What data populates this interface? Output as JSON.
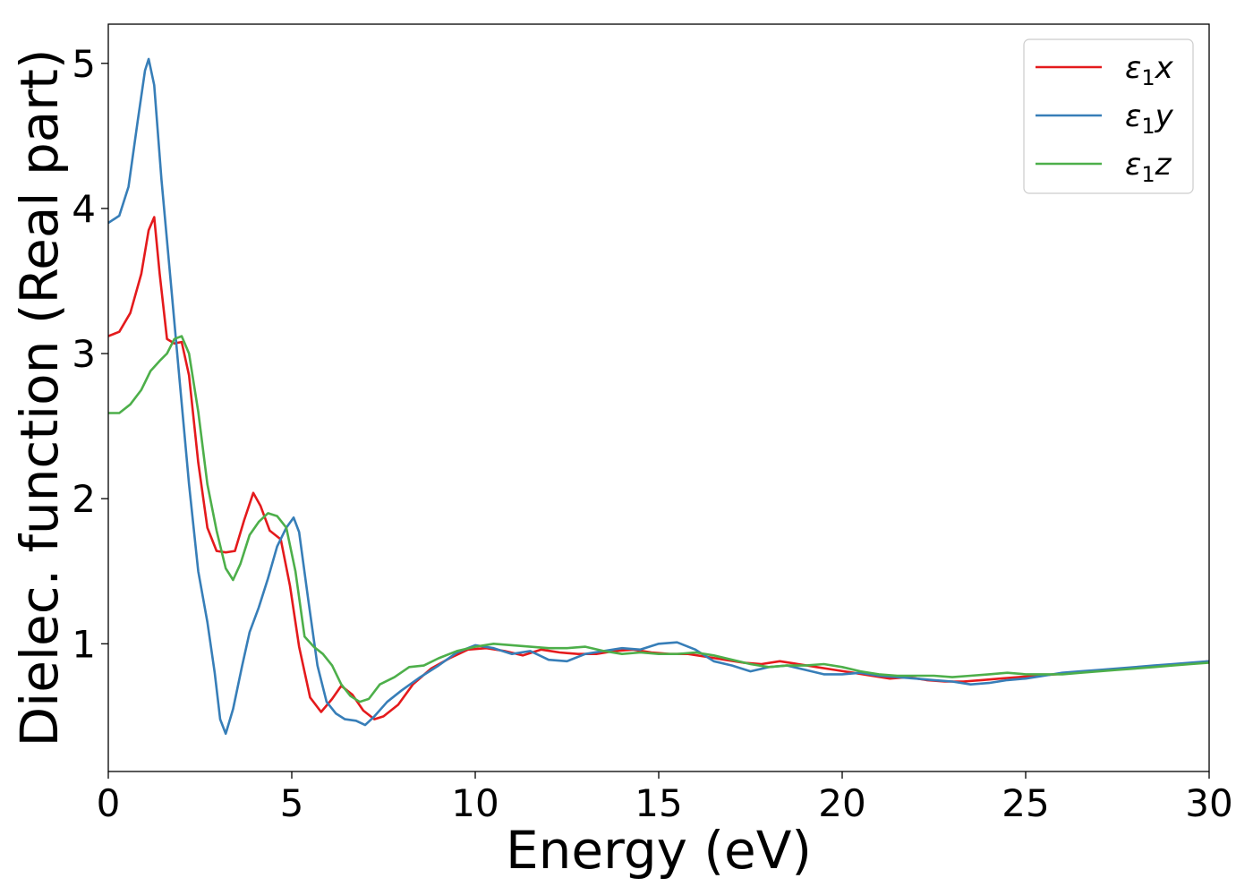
{
  "chart_data": {
    "type": "line",
    "title": "",
    "xlabel": "Energy (eV)",
    "ylabel": "Dielec. function (Real part)",
    "xlim": [
      0,
      30
    ],
    "ylim": [
      0.12,
      5.27
    ],
    "xticks": [
      0,
      5,
      10,
      15,
      20,
      25,
      30
    ],
    "yticks": [
      1,
      2,
      3,
      4,
      5
    ],
    "grid": false,
    "legend_position": "top-right",
    "series": [
      {
        "name": "ε₁x",
        "legend_base": "ε",
        "legend_sub": "1",
        "legend_suffix": "x",
        "color": "#e41a1c",
        "points": [
          [
            0,
            3.12
          ],
          [
            0.3,
            3.15
          ],
          [
            0.6,
            3.28
          ],
          [
            0.9,
            3.55
          ],
          [
            1.1,
            3.85
          ],
          [
            1.25,
            3.94
          ],
          [
            1.4,
            3.55
          ],
          [
            1.6,
            3.1
          ],
          [
            1.8,
            3.07
          ],
          [
            2.0,
            3.08
          ],
          [
            2.2,
            2.85
          ],
          [
            2.45,
            2.25
          ],
          [
            2.7,
            1.8
          ],
          [
            2.95,
            1.64
          ],
          [
            3.2,
            1.63
          ],
          [
            3.45,
            1.64
          ],
          [
            3.7,
            1.85
          ],
          [
            3.95,
            2.04
          ],
          [
            4.15,
            1.95
          ],
          [
            4.4,
            1.78
          ],
          [
            4.7,
            1.72
          ],
          [
            4.95,
            1.4
          ],
          [
            5.2,
            0.98
          ],
          [
            5.5,
            0.63
          ],
          [
            5.8,
            0.53
          ],
          [
            6.1,
            0.62
          ],
          [
            6.35,
            0.71
          ],
          [
            6.65,
            0.65
          ],
          [
            6.95,
            0.54
          ],
          [
            7.25,
            0.48
          ],
          [
            7.5,
            0.5
          ],
          [
            7.9,
            0.58
          ],
          [
            8.3,
            0.72
          ],
          [
            8.8,
            0.83
          ],
          [
            9.3,
            0.9
          ],
          [
            9.8,
            0.96
          ],
          [
            10.3,
            0.97
          ],
          [
            10.8,
            0.95
          ],
          [
            11.3,
            0.92
          ],
          [
            11.8,
            0.96
          ],
          [
            12.3,
            0.94
          ],
          [
            12.8,
            0.93
          ],
          [
            13.3,
            0.93
          ],
          [
            13.8,
            0.95
          ],
          [
            14.3,
            0.96
          ],
          [
            14.8,
            0.94
          ],
          [
            15.3,
            0.93
          ],
          [
            15.8,
            0.93
          ],
          [
            16.3,
            0.91
          ],
          [
            16.8,
            0.89
          ],
          [
            17.3,
            0.87
          ],
          [
            17.8,
            0.86
          ],
          [
            18.3,
            0.88
          ],
          [
            18.8,
            0.86
          ],
          [
            19.3,
            0.84
          ],
          [
            19.8,
            0.82
          ],
          [
            20.3,
            0.8
          ],
          [
            20.8,
            0.78
          ],
          [
            21.3,
            0.76
          ],
          [
            21.8,
            0.77
          ],
          [
            22.3,
            0.75
          ],
          [
            22.8,
            0.74
          ],
          [
            23.3,
            0.74
          ],
          [
            23.8,
            0.75
          ],
          [
            24.3,
            0.76
          ],
          [
            24.8,
            0.77
          ],
          [
            25.3,
            0.78
          ],
          [
            25.8,
            0.79
          ],
          [
            26.3,
            0.8
          ],
          [
            26.8,
            0.81
          ],
          [
            27.3,
            0.82
          ],
          [
            27.8,
            0.83
          ],
          [
            28.3,
            0.84
          ],
          [
            28.8,
            0.85
          ],
          [
            29.3,
            0.86
          ],
          [
            30,
            0.88
          ]
        ]
      },
      {
        "name": "ε₁y",
        "legend_base": "ε",
        "legend_sub": "1",
        "legend_suffix": "y",
        "color": "#377eb8",
        "points": [
          [
            0,
            3.9
          ],
          [
            0.3,
            3.95
          ],
          [
            0.55,
            4.15
          ],
          [
            0.8,
            4.6
          ],
          [
            1.0,
            4.95
          ],
          [
            1.1,
            5.03
          ],
          [
            1.25,
            4.85
          ],
          [
            1.45,
            4.2
          ],
          [
            1.7,
            3.5
          ],
          [
            1.95,
            2.8
          ],
          [
            2.2,
            2.1
          ],
          [
            2.45,
            1.5
          ],
          [
            2.7,
            1.15
          ],
          [
            2.9,
            0.8
          ],
          [
            3.05,
            0.48
          ],
          [
            3.2,
            0.38
          ],
          [
            3.4,
            0.55
          ],
          [
            3.65,
            0.85
          ],
          [
            3.85,
            1.08
          ],
          [
            4.1,
            1.25
          ],
          [
            4.35,
            1.45
          ],
          [
            4.6,
            1.67
          ],
          [
            4.85,
            1.8
          ],
          [
            5.05,
            1.87
          ],
          [
            5.2,
            1.77
          ],
          [
            5.45,
            1.3
          ],
          [
            5.7,
            0.85
          ],
          [
            5.95,
            0.6
          ],
          [
            6.2,
            0.52
          ],
          [
            6.45,
            0.48
          ],
          [
            6.75,
            0.47
          ],
          [
            7.0,
            0.44
          ],
          [
            7.25,
            0.5
          ],
          [
            7.6,
            0.6
          ],
          [
            8.0,
            0.68
          ],
          [
            8.5,
            0.77
          ],
          [
            9.0,
            0.85
          ],
          [
            9.5,
            0.94
          ],
          [
            10.0,
            0.99
          ],
          [
            10.5,
            0.97
          ],
          [
            11.0,
            0.93
          ],
          [
            11.5,
            0.95
          ],
          [
            12.0,
            0.89
          ],
          [
            12.5,
            0.88
          ],
          [
            13.0,
            0.93
          ],
          [
            13.5,
            0.95
          ],
          [
            14.0,
            0.97
          ],
          [
            14.5,
            0.96
          ],
          [
            15.0,
            1.0
          ],
          [
            15.5,
            1.01
          ],
          [
            16.0,
            0.96
          ],
          [
            16.5,
            0.88
          ],
          [
            17.0,
            0.85
          ],
          [
            17.5,
            0.81
          ],
          [
            18.0,
            0.84
          ],
          [
            18.5,
            0.85
          ],
          [
            19.0,
            0.82
          ],
          [
            19.5,
            0.79
          ],
          [
            20.0,
            0.79
          ],
          [
            20.5,
            0.8
          ],
          [
            21.0,
            0.78
          ],
          [
            21.5,
            0.77
          ],
          [
            22.0,
            0.76
          ],
          [
            22.5,
            0.75
          ],
          [
            23.0,
            0.74
          ],
          [
            23.5,
            0.72
          ],
          [
            24.0,
            0.73
          ],
          [
            24.5,
            0.75
          ],
          [
            25.0,
            0.76
          ],
          [
            25.5,
            0.78
          ],
          [
            26.0,
            0.8
          ],
          [
            26.5,
            0.81
          ],
          [
            27.0,
            0.82
          ],
          [
            27.5,
            0.83
          ],
          [
            28.0,
            0.84
          ],
          [
            28.5,
            0.85
          ],
          [
            29.0,
            0.86
          ],
          [
            29.5,
            0.87
          ],
          [
            30,
            0.88
          ]
        ]
      },
      {
        "name": "ε₁z",
        "legend_base": "ε",
        "legend_sub": "1",
        "legend_suffix": "z",
        "color": "#4daf4a",
        "points": [
          [
            0,
            2.59
          ],
          [
            0.3,
            2.59
          ],
          [
            0.6,
            2.65
          ],
          [
            0.9,
            2.75
          ],
          [
            1.15,
            2.88
          ],
          [
            1.4,
            2.95
          ],
          [
            1.6,
            3.0
          ],
          [
            1.8,
            3.1
          ],
          [
            2.0,
            3.12
          ],
          [
            2.2,
            3.0
          ],
          [
            2.45,
            2.6
          ],
          [
            2.7,
            2.1
          ],
          [
            2.95,
            1.78
          ],
          [
            3.2,
            1.52
          ],
          [
            3.4,
            1.44
          ],
          [
            3.6,
            1.55
          ],
          [
            3.85,
            1.75
          ],
          [
            4.1,
            1.84
          ],
          [
            4.35,
            1.9
          ],
          [
            4.6,
            1.88
          ],
          [
            4.85,
            1.8
          ],
          [
            5.1,
            1.5
          ],
          [
            5.35,
            1.05
          ],
          [
            5.6,
            0.98
          ],
          [
            5.85,
            0.93
          ],
          [
            6.1,
            0.85
          ],
          [
            6.35,
            0.72
          ],
          [
            6.6,
            0.64
          ],
          [
            6.85,
            0.6
          ],
          [
            7.1,
            0.62
          ],
          [
            7.4,
            0.72
          ],
          [
            7.8,
            0.77
          ],
          [
            8.2,
            0.84
          ],
          [
            8.6,
            0.85
          ],
          [
            9.0,
            0.9
          ],
          [
            9.5,
            0.95
          ],
          [
            10.0,
            0.98
          ],
          [
            10.5,
            1.0
          ],
          [
            11.0,
            0.99
          ],
          [
            11.5,
            0.98
          ],
          [
            12.0,
            0.97
          ],
          [
            12.5,
            0.97
          ],
          [
            13.0,
            0.98
          ],
          [
            13.5,
            0.95
          ],
          [
            14.0,
            0.93
          ],
          [
            14.5,
            0.94
          ],
          [
            15.0,
            0.93
          ],
          [
            15.5,
            0.93
          ],
          [
            16.0,
            0.94
          ],
          [
            16.5,
            0.92
          ],
          [
            17.0,
            0.89
          ],
          [
            17.5,
            0.86
          ],
          [
            18.0,
            0.84
          ],
          [
            18.5,
            0.85
          ],
          [
            19.0,
            0.85
          ],
          [
            19.5,
            0.86
          ],
          [
            20.0,
            0.84
          ],
          [
            20.5,
            0.81
          ],
          [
            21.0,
            0.79
          ],
          [
            21.5,
            0.78
          ],
          [
            22.0,
            0.78
          ],
          [
            22.5,
            0.78
          ],
          [
            23.0,
            0.77
          ],
          [
            23.5,
            0.78
          ],
          [
            24.0,
            0.79
          ],
          [
            24.5,
            0.8
          ],
          [
            25.0,
            0.79
          ],
          [
            25.5,
            0.79
          ],
          [
            26.0,
            0.79
          ],
          [
            26.5,
            0.8
          ],
          [
            27.0,
            0.81
          ],
          [
            27.5,
            0.82
          ],
          [
            28.0,
            0.83
          ],
          [
            28.5,
            0.84
          ],
          [
            29.0,
            0.85
          ],
          [
            29.5,
            0.86
          ],
          [
            30,
            0.87
          ]
        ]
      }
    ]
  }
}
